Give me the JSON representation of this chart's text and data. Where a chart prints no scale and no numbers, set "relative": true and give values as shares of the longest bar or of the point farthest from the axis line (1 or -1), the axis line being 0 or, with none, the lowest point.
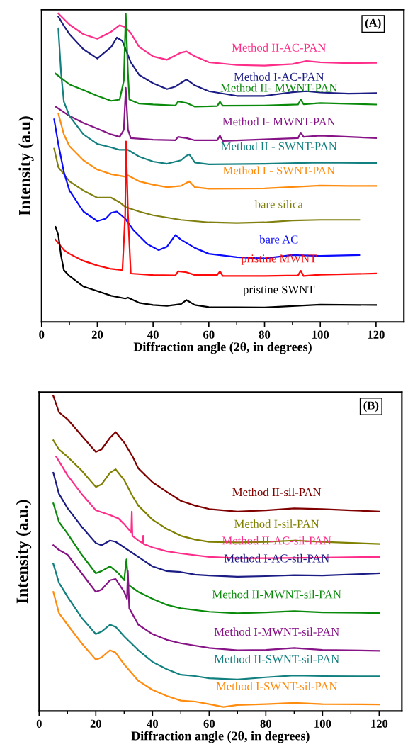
{
  "chart_data": [
    {
      "type": "line",
      "relative": true,
      "xlabel": "Diffraction angle (2θ, in degrees)",
      "ylabel": "Intensity (a.u)",
      "xlim": [
        0,
        130
      ],
      "xticks": [
        0,
        20,
        40,
        60,
        80,
        100,
        120
      ],
      "annotations": [
        "(A)"
      ],
      "series": [
        {
          "name": "Method II-AC-PAN",
          "color": "#ff2d8a",
          "x": [
            6,
            10,
            15,
            20,
            25,
            28,
            30,
            32,
            35,
            40,
            45,
            50,
            52,
            55,
            60,
            70,
            80,
            90,
            95,
            100,
            110,
            120
          ],
          "values": [
            1.0,
            0.964,
            0.933,
            0.918,
            0.941,
            0.962,
            0.956,
            0.937,
            0.892,
            0.861,
            0.85,
            0.873,
            0.877,
            0.861,
            0.842,
            0.833,
            0.831,
            0.836,
            0.846,
            0.842,
            0.839,
            0.84
          ]
        },
        {
          "name": "Method I-AC-PAN",
          "color": "#1c1c85",
          "x": [
            6,
            8,
            10,
            15,
            20,
            25,
            27,
            29,
            30,
            32,
            35,
            40,
            45,
            48,
            52,
            55,
            60,
            70,
            80,
            90,
            95,
            100,
            110,
            120
          ],
          "values": [
            0.99,
            0.96,
            0.933,
            0.884,
            0.854,
            0.892,
            0.922,
            0.911,
            0.888,
            0.842,
            0.801,
            0.774,
            0.755,
            0.763,
            0.786,
            0.767,
            0.748,
            0.733,
            0.733,
            0.745,
            0.748,
            0.744,
            0.74,
            0.742
          ]
        },
        {
          "name": "Method II- MWNT-PAN",
          "color": "#0a8a0a",
          "x": [
            5,
            10,
            15,
            20,
            25,
            28,
            29.5,
            30.2,
            31,
            31.5,
            35,
            40,
            48,
            49,
            52,
            55,
            63,
            64,
            65,
            80,
            92,
            93,
            94,
            100,
            120
          ],
          "values": [
            0.805,
            0.77,
            0.752,
            0.733,
            0.717,
            0.721,
            0.782,
            1.0,
            0.805,
            0.721,
            0.708,
            0.705,
            0.702,
            0.715,
            0.71,
            0.698,
            0.7,
            0.714,
            0.701,
            0.702,
            0.705,
            0.721,
            0.706,
            0.71,
            0.705
          ]
        },
        {
          "name": "Method I- MWNT-PAN",
          "color": "#871487",
          "x": [
            5,
            10,
            15,
            20,
            25,
            28,
            29.5,
            30.2,
            31,
            32,
            40,
            48,
            49,
            52,
            55,
            63,
            64,
            65,
            80,
            92,
            93,
            94,
            100,
            120
          ],
          "values": [
            0.698,
            0.668,
            0.645,
            0.627,
            0.608,
            0.6,
            0.623,
            0.759,
            0.623,
            0.596,
            0.591,
            0.589,
            0.6,
            0.596,
            0.589,
            0.589,
            0.604,
            0.587,
            0.592,
            0.596,
            0.614,
            0.6,
            0.604,
            0.596
          ]
        },
        {
          "name": "Method II - SWNT-PAN",
          "color": "#138080",
          "x": [
            6,
            7,
            8,
            10,
            15,
            20,
            25,
            28,
            31,
            35,
            40,
            45,
            50,
            52,
            53,
            55,
            60,
            80,
            100,
            120
          ],
          "values": [
            0.952,
            0.805,
            0.714,
            0.668,
            0.608,
            0.577,
            0.566,
            0.558,
            0.558,
            0.536,
            0.52,
            0.513,
            0.524,
            0.539,
            0.543,
            0.517,
            0.511,
            0.513,
            0.517,
            0.515
          ]
        },
        {
          "name": "Method I - SWNT-PAN",
          "color": "#ff8c0f",
          "x": [
            6,
            8,
            10,
            15,
            20,
            25,
            30,
            31,
            35,
            40,
            45,
            50,
            53,
            55,
            60,
            80,
            100,
            110,
            120
          ],
          "values": [
            0.676,
            0.608,
            0.57,
            0.524,
            0.494,
            0.479,
            0.471,
            0.475,
            0.456,
            0.445,
            0.437,
            0.441,
            0.456,
            0.437,
            0.432,
            0.433,
            0.442,
            0.441,
            0.441
          ]
        },
        {
          "name": "bare silica",
          "color": "#808010",
          "x": [
            4.5,
            6,
            10,
            15,
            20,
            25,
            28,
            30,
            35,
            40,
            50,
            60,
            70,
            80,
            90,
            100,
            114
          ],
          "values": [
            0.562,
            0.502,
            0.456,
            0.426,
            0.403,
            0.403,
            0.388,
            0.373,
            0.358,
            0.346,
            0.331,
            0.323,
            0.321,
            0.323,
            0.329,
            0.331,
            0.331
          ]
        },
        {
          "name": "bare AC",
          "color": "#0a0aff",
          "x": [
            4.5,
            6,
            8,
            10,
            15,
            20,
            23,
            25,
            27,
            30,
            33,
            38,
            42,
            45,
            48,
            50,
            55,
            60,
            70,
            80,
            90,
            100,
            114
          ],
          "values": [
            0.657,
            0.577,
            0.486,
            0.426,
            0.358,
            0.327,
            0.335,
            0.354,
            0.358,
            0.335,
            0.297,
            0.252,
            0.233,
            0.244,
            0.282,
            0.267,
            0.24,
            0.221,
            0.21,
            0.206,
            0.217,
            0.214,
            0.217
          ]
        },
        {
          "name": "pristine MWNT",
          "color": "#ff0a0a",
          "x": [
            5,
            8,
            10,
            15,
            20,
            25,
            29,
            30,
            30.3,
            31,
            32,
            40,
            48,
            49,
            52,
            55,
            63,
            64,
            65,
            80,
            92,
            93,
            94,
            100,
            120
          ],
          "values": [
            0.267,
            0.233,
            0.221,
            0.198,
            0.183,
            0.172,
            0.168,
            0.35,
            0.585,
            0.35,
            0.157,
            0.152,
            0.151,
            0.164,
            0.161,
            0.152,
            0.152,
            0.164,
            0.149,
            0.149,
            0.151,
            0.166,
            0.149,
            0.153,
            0.157
          ]
        },
        {
          "name": "pristine SWNT",
          "color": "#000000",
          "x": [
            5,
            6,
            7,
            8,
            10,
            15,
            20,
            25,
            30,
            31,
            35,
            40,
            45,
            50,
            52,
            55,
            60,
            80,
            100,
            120
          ],
          "values": [
            0.308,
            0.282,
            0.214,
            0.168,
            0.149,
            0.115,
            0.1,
            0.085,
            0.076,
            0.079,
            0.062,
            0.055,
            0.052,
            0.058,
            0.071,
            0.055,
            0.048,
            0.047,
            0.056,
            0.055
          ]
        }
      ]
    },
    {
      "type": "line",
      "relative": true,
      "xlabel": "Diffraction angle (2θ, in degrees)",
      "ylabel": "Intensity (a.u.)",
      "xlim": [
        0,
        128
      ],
      "xticks": [
        0,
        20,
        40,
        60,
        80,
        100,
        120
      ],
      "annotations": [
        "(B)"
      ],
      "series": [
        {
          "name": "Method II-sil-PAN",
          "color": "#800000",
          "x": [
            5,
            7,
            10,
            15,
            20,
            22,
            25,
            27,
            30,
            33,
            35,
            40,
            45,
            50,
            55,
            60,
            70,
            80,
            90,
            100,
            110,
            120
          ],
          "values": [
            1.0,
            0.948,
            0.926,
            0.874,
            0.822,
            0.83,
            0.867,
            0.885,
            0.852,
            0.807,
            0.77,
            0.726,
            0.696,
            0.667,
            0.652,
            0.641,
            0.633,
            0.637,
            0.643,
            0.641,
            0.637,
            0.633
          ]
        },
        {
          "name": "Method I-sil-PAN",
          "color": "#808000",
          "x": [
            5,
            7,
            10,
            15,
            20,
            22,
            25,
            27,
            30,
            33,
            35,
            40,
            45,
            50,
            55,
            60,
            70,
            80,
            90,
            100,
            120
          ],
          "values": [
            0.859,
            0.83,
            0.807,
            0.763,
            0.711,
            0.719,
            0.756,
            0.767,
            0.733,
            0.681,
            0.652,
            0.607,
            0.578,
            0.556,
            0.544,
            0.537,
            0.535,
            0.537,
            0.541,
            0.537,
            0.53
          ]
        },
        {
          "name": "Method II-AC-sil-PAN",
          "color": "#ff2d8a",
          "x": [
            6,
            8,
            10,
            15,
            20,
            25,
            28,
            30,
            32.5,
            32.7,
            32.9,
            35,
            36.5,
            36.7,
            36.9,
            40,
            45,
            50,
            60,
            70,
            80,
            100,
            120
          ],
          "values": [
            0.807,
            0.778,
            0.748,
            0.689,
            0.637,
            0.622,
            0.611,
            0.593,
            0.567,
            0.633,
            0.556,
            0.541,
            0.533,
            0.556,
            0.53,
            0.519,
            0.507,
            0.5,
            0.489,
            0.485,
            0.485,
            0.487,
            0.489
          ]
        },
        {
          "name": "Method I-AC-sil-PAN",
          "color": "#1c1c85",
          "x": [
            5,
            7,
            10,
            15,
            20,
            22,
            25,
            27,
            30,
            35,
            40,
            45,
            50,
            55,
            60,
            70,
            80,
            90,
            100,
            120
          ],
          "values": [
            0.756,
            0.689,
            0.644,
            0.585,
            0.533,
            0.526,
            0.541,
            0.537,
            0.519,
            0.489,
            0.459,
            0.444,
            0.441,
            0.433,
            0.43,
            0.426,
            0.428,
            0.431,
            0.43,
            0.437
          ]
        },
        {
          "name": "Method II-MWNT-sil-PAN",
          "color": "#0a8a0a",
          "x": [
            5,
            7,
            10,
            15,
            20,
            22,
            25,
            28,
            30,
            30.8,
            31.5,
            35,
            40,
            45,
            50,
            60,
            70,
            80,
            90,
            100,
            120
          ],
          "values": [
            0.659,
            0.6,
            0.563,
            0.496,
            0.437,
            0.444,
            0.459,
            0.437,
            0.415,
            0.481,
            0.4,
            0.378,
            0.356,
            0.337,
            0.326,
            0.315,
            0.31,
            0.313,
            0.317,
            0.313,
            0.311
          ]
        },
        {
          "name": "Method I-MWNT-sil-PAN",
          "color": "#871487",
          "x": [
            5,
            7,
            10,
            15,
            20,
            22,
            25,
            27,
            30,
            31,
            31.3,
            31.8,
            35,
            40,
            45,
            50,
            60,
            70,
            80,
            90,
            100,
            120
          ],
          "values": [
            0.526,
            0.511,
            0.496,
            0.437,
            0.378,
            0.385,
            0.415,
            0.419,
            0.378,
            0.356,
            0.444,
            0.326,
            0.274,
            0.244,
            0.226,
            0.215,
            0.2,
            0.193,
            0.194,
            0.2,
            0.194,
            0.191
          ]
        },
        {
          "name": "Method II-SWNT-sil-PAN",
          "color": "#138080",
          "x": [
            5,
            7,
            10,
            15,
            20,
            22,
            25,
            27,
            30,
            35,
            40,
            45,
            50,
            55,
            60,
            70,
            80,
            90,
            100,
            120
          ],
          "values": [
            0.467,
            0.407,
            0.363,
            0.296,
            0.244,
            0.252,
            0.274,
            0.267,
            0.237,
            0.193,
            0.156,
            0.133,
            0.115,
            0.111,
            0.104,
            0.1,
            0.107,
            0.113,
            0.111,
            0.11
          ]
        },
        {
          "name": "Method I-SWNT-sil-PAN",
          "color": "#ff8c0f",
          "x": [
            5,
            7,
            10,
            15,
            20,
            22,
            25,
            27,
            30,
            35,
            40,
            45,
            50,
            55,
            60,
            65,
            70,
            80,
            90,
            100,
            120
          ],
          "values": [
            0.378,
            0.311,
            0.274,
            0.215,
            0.163,
            0.17,
            0.193,
            0.185,
            0.148,
            0.096,
            0.067,
            0.048,
            0.033,
            0.03,
            0.022,
            0.013,
            0.019,
            0.022,
            0.026,
            0.022,
            0.021
          ]
        }
      ]
    }
  ]
}
